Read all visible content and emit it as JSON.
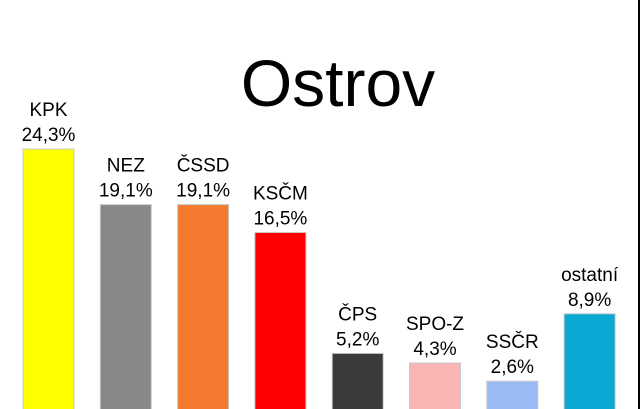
{
  "chart_data": {
    "type": "bar",
    "title": "Ostrov",
    "xlabel": "",
    "ylabel": "",
    "ylim": [
      0,
      25
    ],
    "grid": false,
    "legend": "none",
    "categories": [
      "KPK",
      "NEZ",
      "ČSSD",
      "KSČM",
      "ČPS",
      "SPO-Z",
      "SSČR",
      "ostatní"
    ],
    "values": [
      24.3,
      19.1,
      19.1,
      16.5,
      5.2,
      4.3,
      2.6,
      8.9
    ],
    "value_labels": [
      "24,3%",
      "19,1%",
      "19,1%",
      "16,5%",
      "5,2%",
      "4,3%",
      "2,6%",
      "8,9%"
    ],
    "colors": [
      "#ffff00",
      "#888888",
      "#f47a30",
      "#ff0000",
      "#3a3a3a",
      "#f9b4b4",
      "#99bbf5",
      "#0aa8d3"
    ]
  }
}
